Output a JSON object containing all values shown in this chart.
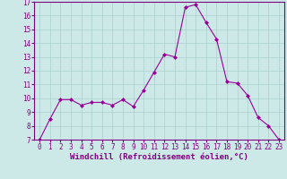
{
  "x": [
    0,
    1,
    2,
    3,
    4,
    5,
    6,
    7,
    8,
    9,
    10,
    11,
    12,
    13,
    14,
    15,
    16,
    17,
    18,
    19,
    20,
    21,
    22,
    23
  ],
  "y": [
    7.0,
    8.5,
    9.9,
    9.9,
    9.5,
    9.7,
    9.7,
    9.5,
    9.9,
    9.4,
    10.6,
    11.9,
    13.2,
    13.0,
    16.6,
    16.8,
    15.5,
    14.3,
    11.2,
    11.1,
    10.2,
    8.6,
    8.0,
    7.0
  ],
  "line_color": "#990099",
  "marker": "D",
  "marker_size": 2.0,
  "bg_color": "#cce9e8",
  "grid_color": "#aacfce",
  "xlabel": "Windchill (Refroidissement éolien,°C)",
  "xlabel_color": "#800080",
  "tick_color": "#800080",
  "ylim": [
    7,
    17
  ],
  "xlim_min": -0.5,
  "xlim_max": 23.5,
  "yticks": [
    7,
    8,
    9,
    10,
    11,
    12,
    13,
    14,
    15,
    16,
    17
  ],
  "xticks": [
    0,
    1,
    2,
    3,
    4,
    5,
    6,
    7,
    8,
    9,
    10,
    11,
    12,
    13,
    14,
    15,
    16,
    17,
    18,
    19,
    20,
    21,
    22,
    23
  ],
  "tick_fontsize": 5.5,
  "xlabel_fontsize": 6.5,
  "line_width": 0.8
}
